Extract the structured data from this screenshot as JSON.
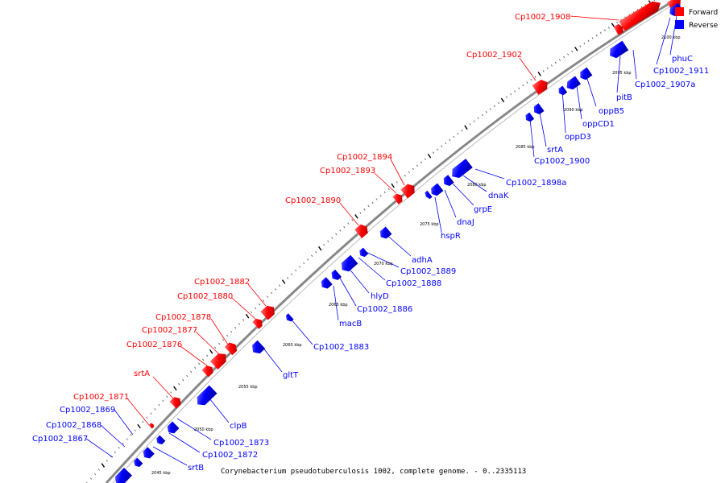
{
  "colors": {
    "forward": "#ff0000",
    "reverse": "#0000ff",
    "backbone": "#808080"
  },
  "legend": {
    "forward": "Forward",
    "reverse": "Reverse"
  },
  "caption": "Corynebacterium pseudotuberculosis 1002, complete genome. - 0..2335113",
  "scale_ticks": [
    "2045 kbp",
    "2050 kbp",
    "2055 kbp",
    "2060 kbp",
    "2065 kbp",
    "2070 kbp",
    "2075 kbp",
    "2080 kbp",
    "2085 kbp",
    "2090 kbp",
    "2095 kbp",
    "2100 kbp"
  ],
  "forward_labels": [
    "Cp1002_1908",
    "Cp1002_1902",
    "Cp1002_1894",
    "Cp1002_1893",
    "Cp1002_1890",
    "Cp1002_1882",
    "Cp1002_1880",
    "Cp1002_1878",
    "Cp1002_1877",
    "Cp1002_1876",
    "srtA",
    "Cp1002_1871"
  ],
  "reverse_labels": [
    "phuC",
    "Cp1002_1911",
    "Cp1002_1907a",
    "pitB",
    "oppB5",
    "oppCD1",
    "oppD3",
    "srtA",
    "Cp1002_1900",
    "Cp1002_1898a",
    "dnaK",
    "grpE",
    "dnaJ",
    "hspR",
    "adhA",
    "Cp1002_1889",
    "Cp1002_1888",
    "hlyD",
    "Cp1002_1886",
    "macB",
    "Cp1002_1883",
    "gltT",
    "clpB",
    "Cp1002_1873",
    "Cp1002_1872",
    "srtB",
    "Cp1002_1869",
    "Cp1002_1868",
    "Cp1002_1867"
  ]
}
